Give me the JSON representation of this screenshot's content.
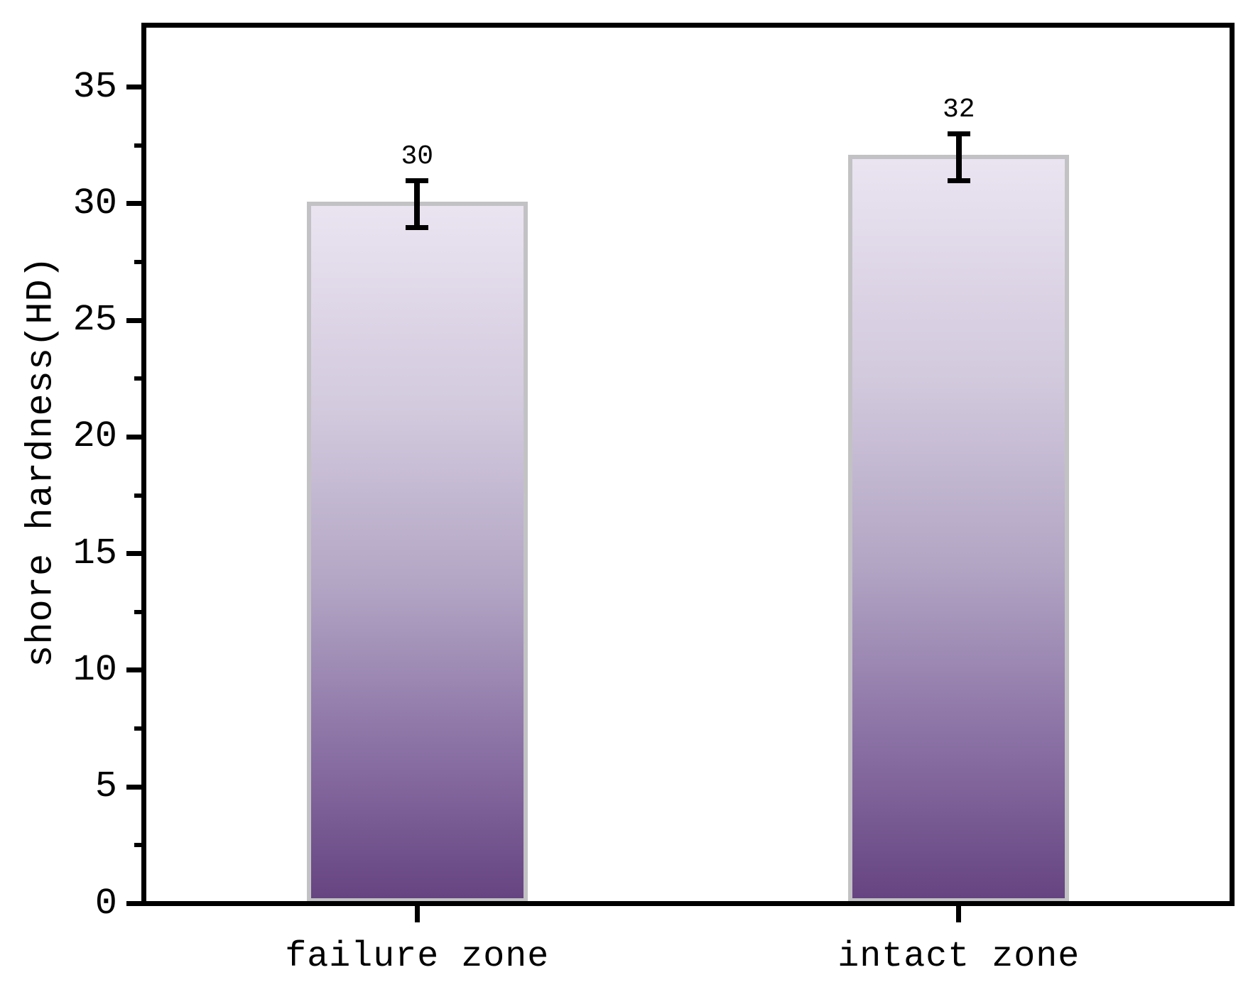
{
  "chart_data": {
    "type": "bar",
    "title": "",
    "categories": [
      "failure zone",
      "intact zone"
    ],
    "values": [
      30,
      32
    ],
    "error_bars": [
      1,
      1
    ],
    "bar_labels": [
      "30",
      "32"
    ],
    "xlabel": "",
    "ylabel": "shore hardness(HD)",
    "ylim": [
      0,
      37.5
    ],
    "yticks": [
      0,
      5,
      10,
      15,
      20,
      25,
      30,
      35
    ],
    "yticks_minor": [
      2.5,
      7.5,
      12.5,
      17.5,
      22.5,
      27.5,
      32.5
    ],
    "grid": false,
    "legend": "none",
    "colors": {
      "bar_gradient_top": "#eae4f1",
      "bar_gradient_upper_mid": "#d2c9dd",
      "bar_gradient_mid": "#b2a5c4",
      "bar_gradient_lower_mid": "#8b72a5",
      "bar_gradient_bottom": "#664481",
      "bar_border": "#c2c2c4",
      "axis": "#000000",
      "error_bar": "#000000",
      "background": "#ffffff"
    }
  }
}
